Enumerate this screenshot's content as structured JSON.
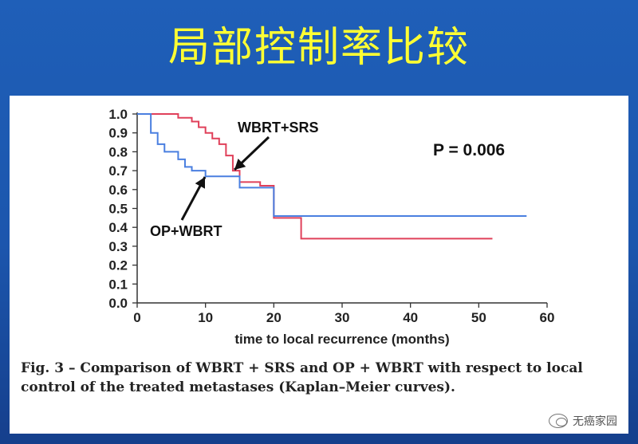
{
  "slide": {
    "title": "局部控制率比较",
    "caption": "Fig. 3 – Comparison of WBRT + SRS and OP + WBRT with respect to local control of the treated metastases (Kaplan–Meier curves).",
    "watermark": "无癌家园"
  },
  "chart_data": {
    "type": "line",
    "title": "",
    "xlabel": "time to local recurrence (months)",
    "ylabel": "",
    "xlim": [
      0,
      60
    ],
    "ylim": [
      0,
      1
    ],
    "xticks": [
      0,
      10,
      20,
      30,
      40,
      50,
      60
    ],
    "yticks": [
      "0.0",
      "0.1",
      "0.2",
      "0.3",
      "0.4",
      "0.5",
      "0.6",
      "0.7",
      "0.8",
      "0.9",
      "1.0"
    ],
    "grid": false,
    "annotation": "P = 0.006",
    "series": [
      {
        "name": "WBRT+SRS",
        "color": "#e0405a",
        "step": true,
        "x": [
          0,
          6,
          8,
          9,
          10,
          11,
          12,
          13,
          14,
          15,
          18,
          20,
          24,
          52
        ],
        "y": [
          1.0,
          0.98,
          0.96,
          0.93,
          0.9,
          0.87,
          0.84,
          0.78,
          0.7,
          0.64,
          0.62,
          0.45,
          0.34,
          0.34
        ]
      },
      {
        "name": "OP+WBRT",
        "color": "#4a7fe0",
        "step": true,
        "x": [
          0,
          2,
          3,
          4,
          6,
          7,
          8,
          10,
          15,
          20,
          57
        ],
        "y": [
          1.0,
          0.9,
          0.84,
          0.8,
          0.76,
          0.72,
          0.7,
          0.67,
          0.61,
          0.46,
          0.46
        ]
      }
    ]
  }
}
